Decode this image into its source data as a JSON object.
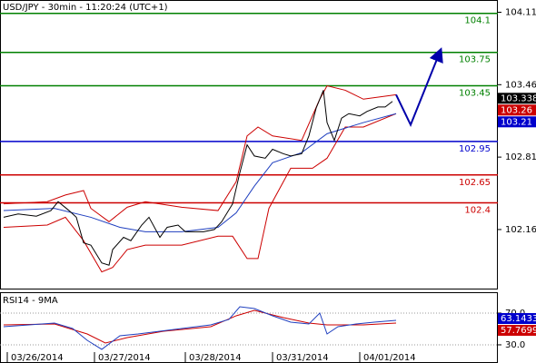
{
  "chart_data": [
    {
      "type": "line",
      "title": "USD/JPY - 30min - 11:20:24 (UTC+1)",
      "xlim": [
        0,
        137
      ],
      "ylim": [
        101.63,
        104.22
      ],
      "yticks": [
        102.16,
        102.81,
        103.46,
        104.11
      ],
      "levels": [
        {
          "value": 104.1,
          "color": "#008000"
        },
        {
          "value": 103.75,
          "color": "#008000"
        },
        {
          "value": 103.45,
          "color": "#008000"
        },
        {
          "value": 102.95,
          "color": "#0000cc"
        },
        {
          "value": 102.65,
          "color": "#cc0000"
        },
        {
          "value": 102.4,
          "color": "#cc0000"
        }
      ],
      "series": [
        {
          "color": "#cc0000",
          "x": [
            1,
            13,
            18,
            23,
            25,
            30,
            35,
            40,
            50,
            60,
            65,
            68,
            71,
            75,
            83,
            88,
            90,
            95,
            100,
            109
          ],
          "values": [
            102.39,
            102.41,
            102.47,
            102.51,
            102.35,
            102.23,
            102.36,
            102.41,
            102.36,
            102.33,
            102.59,
            103.0,
            103.08,
            103.0,
            102.96,
            103.33,
            103.45,
            103.41,
            103.33,
            103.37
          ]
        },
        {
          "color": "#cc0000",
          "x": [
            1,
            13,
            18,
            23,
            28,
            31,
            35,
            40,
            50,
            60,
            64,
            68,
            71,
            74,
            80,
            86,
            90,
            95,
            100,
            109
          ],
          "values": [
            102.18,
            102.2,
            102.27,
            102.06,
            101.78,
            101.82,
            101.98,
            102.02,
            102.02,
            102.1,
            102.1,
            101.9,
            101.9,
            102.35,
            102.71,
            102.71,
            102.8,
            103.08,
            103.08,
            103.2
          ]
        },
        {
          "color": "#1f3fbf",
          "x": [
            1,
            15,
            25,
            33,
            40,
            50,
            60,
            65,
            70,
            75,
            83,
            90,
            100,
            109
          ],
          "values": [
            102.33,
            102.35,
            102.27,
            102.18,
            102.14,
            102.14,
            102.18,
            102.31,
            102.55,
            102.76,
            102.85,
            103.02,
            103.12,
            103.2
          ]
        },
        {
          "color": "#000000",
          "x": [
            1,
            5,
            10,
            14,
            16,
            19,
            21,
            23,
            25,
            28,
            30,
            31,
            34,
            36,
            39,
            41,
            44,
            46,
            49,
            51,
            54,
            56,
            59,
            61,
            64,
            66,
            68,
            70,
            73,
            75,
            78,
            80,
            83,
            85,
            87,
            89,
            90,
            92,
            94,
            96,
            99,
            101,
            104,
            106,
            108
          ],
          "values": [
            102.27,
            102.3,
            102.28,
            102.33,
            102.41,
            102.33,
            102.27,
            102.04,
            102.02,
            101.86,
            101.84,
            101.98,
            102.09,
            102.06,
            102.2,
            102.27,
            102.09,
            102.18,
            102.2,
            102.14,
            102.14,
            102.14,
            102.16,
            102.23,
            102.39,
            102.67,
            102.92,
            102.82,
            102.8,
            102.88,
            102.84,
            102.82,
            102.84,
            103.0,
            103.25,
            103.41,
            103.12,
            102.96,
            103.16,
            103.2,
            103.18,
            103.22,
            103.26,
            103.26,
            103.31
          ]
        }
      ],
      "forecast": {
        "color": "#0000aa",
        "x": [
          109,
          113,
          121
        ],
        "values": [
          103.37,
          103.1,
          103.75
        ]
      },
      "price_tags": [
        {
          "value": 103.338,
          "color": "#000000"
        },
        {
          "value": 103.26,
          "color": "#cc0000"
        },
        {
          "value": 103.21,
          "color": "#0000cc"
        }
      ]
    },
    {
      "type": "line",
      "title": "RSI14 - 9MA",
      "xlim": [
        0,
        137
      ],
      "ylim": [
        7.1,
        96.3
      ],
      "yticks": [
        {
          "value": 70,
          "label": "70.0"
        },
        {
          "value": 30,
          "label": "30.0"
        }
      ],
      "grid": true,
      "xticks": [
        {
          "value": 2,
          "label": "03/26/2014"
        },
        {
          "value": 26,
          "label": "03/27/2014"
        },
        {
          "value": 51,
          "label": "03/28/2014"
        },
        {
          "value": 75,
          "label": "03/31/2014"
        },
        {
          "value": 99,
          "label": "04/01/2014"
        }
      ],
      "series": [
        {
          "color": "#cc0000",
          "x": [
            1,
            15,
            24,
            29,
            35,
            45,
            58,
            65,
            70,
            78,
            85,
            90,
            100,
            109
          ],
          "values": [
            55.1,
            56.3,
            43.7,
            32.3,
            39.1,
            47.1,
            52.9,
            66.6,
            73.4,
            64.3,
            57.4,
            55.1,
            55.1,
            57.4
          ]
        },
        {
          "color": "#1f3fbf",
          "x": [
            1,
            8,
            15,
            20,
            24,
            28,
            33,
            38,
            44,
            50,
            58,
            63,
            66,
            70,
            75,
            80,
            85,
            88,
            90,
            93,
            98,
            103,
            109
          ],
          "values": [
            52.9,
            55.1,
            57.4,
            50.6,
            35.7,
            24.3,
            41.4,
            43.7,
            47.1,
            50.6,
            55.1,
            62.0,
            78.0,
            75.7,
            66.6,
            58.6,
            56.3,
            70.0,
            43.7,
            52.9,
            56.3,
            58.6,
            60.9
          ]
        }
      ],
      "price_tags": [
        {
          "value": 63.1433,
          "color": "#0000cc"
        },
        {
          "value": 57.7699,
          "color": "#cc0000"
        }
      ]
    }
  ]
}
